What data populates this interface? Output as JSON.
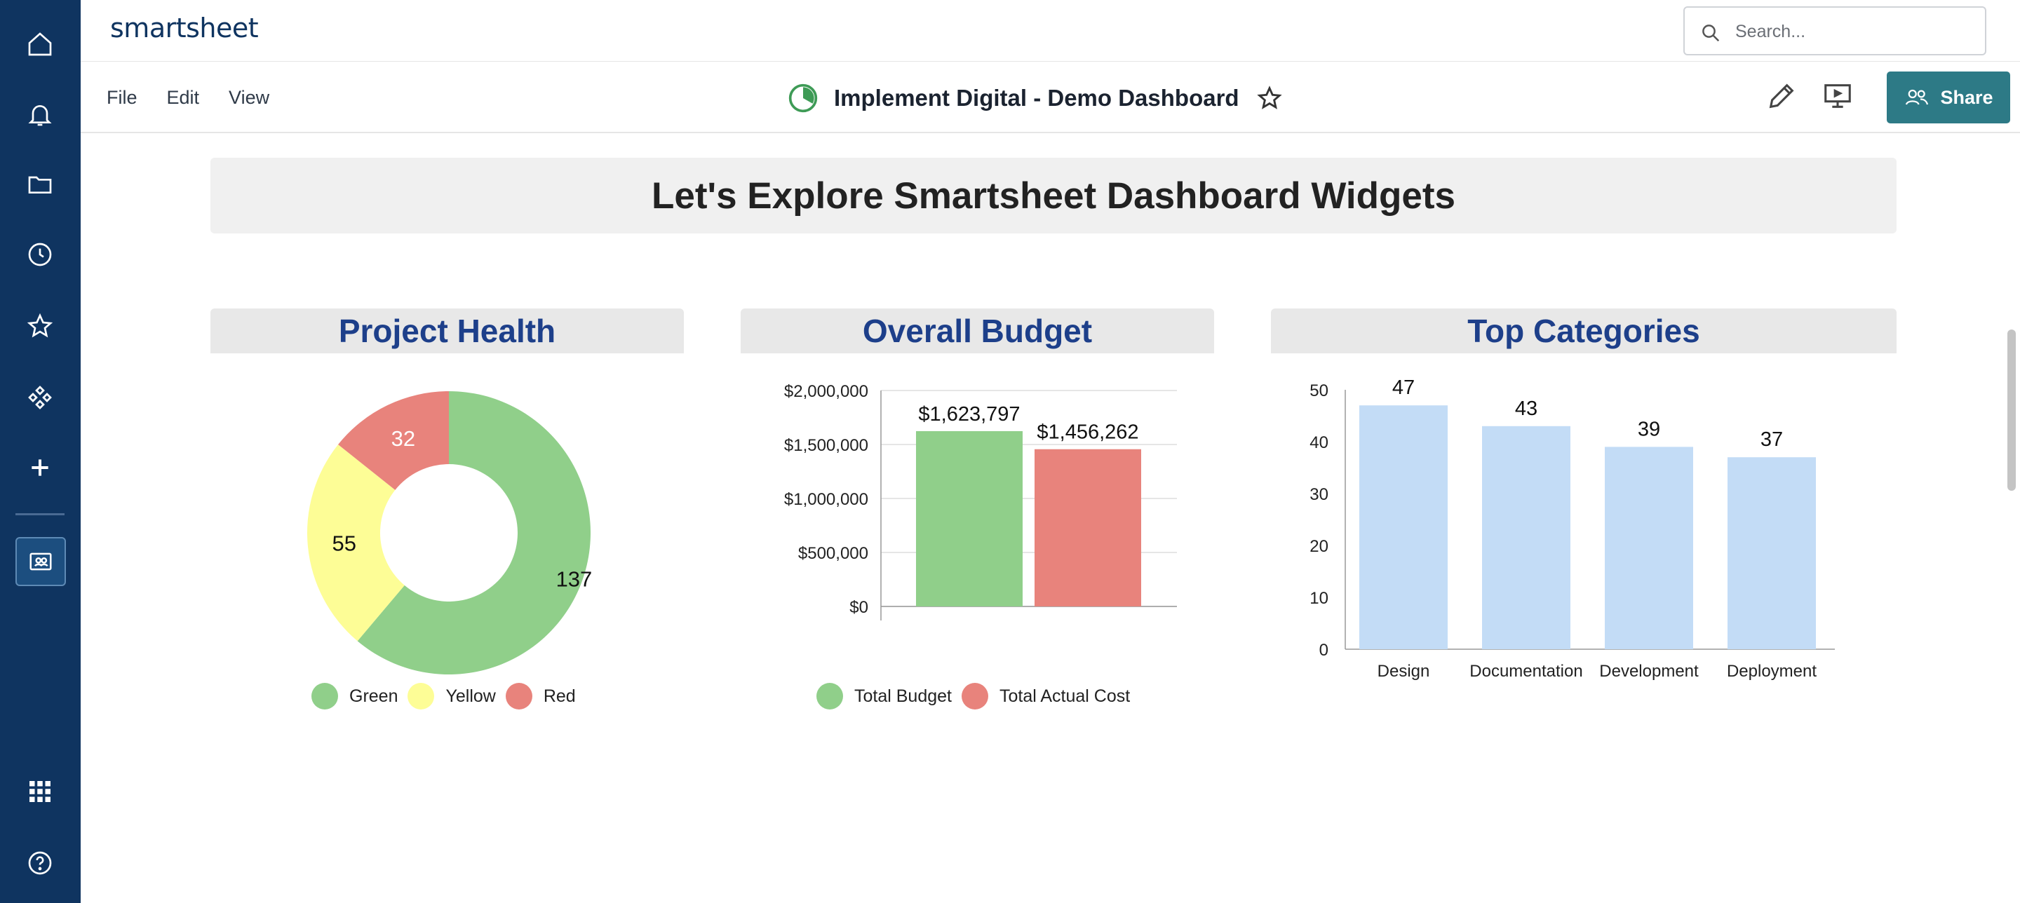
{
  "app": {
    "logo": "smartsheet"
  },
  "search": {
    "placeholder": "Search..."
  },
  "menu": {
    "file": "File",
    "edit": "Edit",
    "view": "View"
  },
  "document": {
    "title": "Implement Digital - Demo Dashboard"
  },
  "toolbar": {
    "share_label": "Share"
  },
  "rail": {
    "icons": [
      "home-icon",
      "bell-icon",
      "folder-icon",
      "clock-icon",
      "star-icon",
      "apps-solutions-icon",
      "plus-icon",
      "workspace-icon",
      "grid-launcher-icon",
      "help-icon"
    ]
  },
  "dashboard": {
    "banner_title": "Let's Explore Smartsheet Dashboard Widgets",
    "widgets": [
      {
        "title": "Project Health"
      },
      {
        "title": "Overall Budget"
      },
      {
        "title": "Top Categories"
      }
    ]
  },
  "colors": {
    "rail": "#0f3460",
    "share": "#2d7a86",
    "widget_title": "#1d3f8a",
    "green": "#90cf8a",
    "yellow": "#fdfd96",
    "red": "#e8837c",
    "light_blue": "#c3dcf6"
  },
  "chart_data": [
    {
      "type": "pie",
      "title": "Project Health",
      "categories": [
        "Green",
        "Yellow",
        "Red"
      ],
      "values": [
        137,
        55,
        32
      ],
      "colors": [
        "#90cf8a",
        "#fdfd96",
        "#e8837c"
      ],
      "legend": [
        "Green",
        "Yellow",
        "Red"
      ],
      "legend_position": "bottom"
    },
    {
      "type": "bar",
      "title": "Overall Budget",
      "categories": [
        "Total Budget",
        "Total Actual Cost"
      ],
      "values": [
        1623797,
        1456262
      ],
      "value_labels": [
        "$1,623,797",
        "$1,456,262"
      ],
      "colors": [
        "#90cf8a",
        "#e8837c"
      ],
      "ylim": [
        0,
        2000000
      ],
      "yticks": [
        "$0",
        "$500,000",
        "$1,000,000",
        "$1,500,000",
        "$2,000,000"
      ],
      "legend": [
        "Total Budget",
        "Total Actual Cost"
      ],
      "legend_position": "bottom",
      "grid": true
    },
    {
      "type": "bar",
      "title": "Top Categories",
      "categories": [
        "Design",
        "Documentation",
        "Development",
        "Deployment"
      ],
      "values": [
        47,
        43,
        39,
        37
      ],
      "color": "#c3dcf6",
      "ylim": [
        0,
        50
      ],
      "yticks": [
        "0",
        "10",
        "20",
        "30",
        "40",
        "50"
      ],
      "grid": false
    }
  ]
}
